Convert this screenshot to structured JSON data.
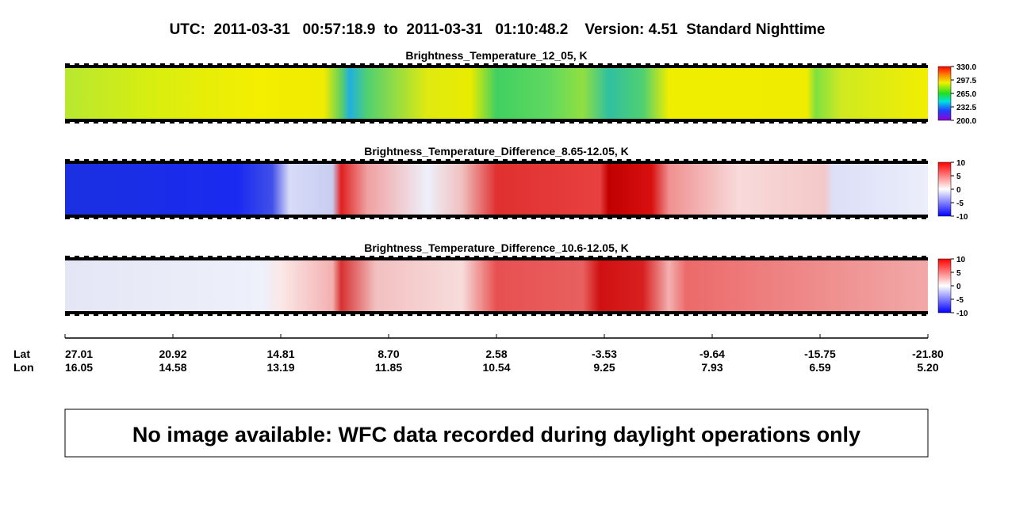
{
  "header": {
    "title": "UTC:  2011-03-31   00:57:18.9  to  2011-03-31   01:10:48.2    Version: 4.51  Standard Nighttime"
  },
  "panels": [
    {
      "title": "Brightness_Temperature_12_05, K",
      "colorbar": {
        "range": [
          200,
          330
        ],
        "ticks": [
          {
            "value": 330,
            "label": "330.0"
          },
          {
            "value": 297.5,
            "label": "297.5"
          },
          {
            "value": 265,
            "label": "265.0"
          },
          {
            "value": 232.5,
            "label": "232.5"
          },
          {
            "value": 200,
            "label": "200.0"
          }
        ]
      }
    },
    {
      "title": "Brightness_Temperature_Difference_8.65-12.05, K",
      "colorbar": {
        "range": [
          -10,
          10
        ],
        "ticks": [
          10,
          5,
          0,
          -5,
          -10
        ]
      }
    },
    {
      "title": "Brightness_Temperature_Difference_10.6-12.05, K",
      "colorbar": {
        "range": [
          -10,
          10
        ],
        "ticks": [
          10,
          5,
          0,
          -5,
          -10
        ]
      }
    }
  ],
  "axis": {
    "row_labels": [
      "Lat",
      "Lon"
    ],
    "lat": [
      "27.01",
      "20.92",
      "14.81",
      "8.70",
      "2.58",
      "-3.53",
      "-9.64",
      "-15.75",
      "-21.80"
    ],
    "lon": [
      "16.05",
      "14.58",
      "13.19",
      "11.85",
      "10.54",
      "9.25",
      "7.93",
      "6.59",
      "5.20"
    ]
  },
  "message": "No image available: WFC data recorded during daylight operations only"
}
